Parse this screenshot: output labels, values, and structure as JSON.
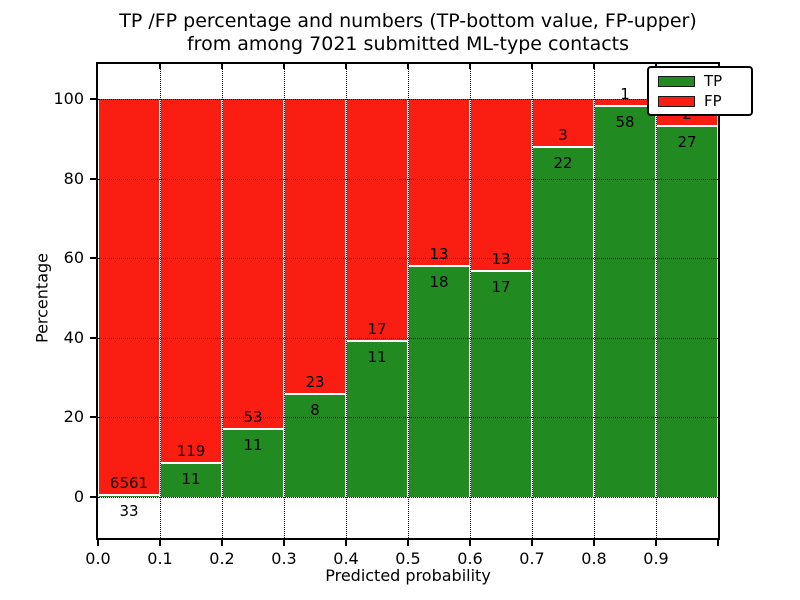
{
  "figure": {
    "title_line1": "TP /FP percentage and numbers (TP-bottom value, FP-upper)",
    "title_line2": "from among 7021 submitted ML-type contacts"
  },
  "axes": {
    "xlabel": "Predicted probability",
    "ylabel": "Percentage",
    "x_tick_labels": [
      "0.0",
      "0.1",
      "0.2",
      "0.3",
      "0.4",
      "0.5",
      "0.6",
      "0.7",
      "0.8",
      "0.9"
    ],
    "y_tick_values": [
      0,
      20,
      40,
      60,
      80,
      100
    ]
  },
  "legend": {
    "items": [
      {
        "label": "TP",
        "color": "#218a21"
      },
      {
        "label": "FP",
        "color": "#fa1d12"
      }
    ]
  },
  "colors": {
    "tp": "#218a21",
    "fp": "#fa1d12",
    "grid": "#000000",
    "spine": "#000000",
    "background": "#ffffff",
    "label_text": "#000000"
  },
  "chart_data": {
    "type": "bar",
    "stacked": true,
    "title": "TP /FP percentage and numbers (TP-bottom value, FP-upper) from among 7021 submitted ML-type contacts",
    "xlabel": "Predicted probability",
    "ylabel": "Percentage",
    "total_contacts": 7021,
    "categories": [
      "0.0-0.1",
      "0.1-0.2",
      "0.2-0.3",
      "0.3-0.4",
      "0.4-0.5",
      "0.5-0.6",
      "0.6-0.7",
      "0.7-0.8",
      "0.8-0.9",
      "0.9-1.0"
    ],
    "x_bin_edges": [
      0.0,
      0.1,
      0.2,
      0.3,
      0.4,
      0.5,
      0.6,
      0.7,
      0.8,
      0.9,
      1.0
    ],
    "series": [
      {
        "name": "TP",
        "counts": [
          33,
          11,
          11,
          8,
          11,
          18,
          17,
          22,
          58,
          27
        ],
        "percent_of_bin": [
          0.5,
          8.5,
          17.2,
          25.8,
          39.3,
          58.1,
          56.7,
          88.0,
          98.3,
          93.1
        ]
      },
      {
        "name": "FP",
        "counts": [
          6561,
          119,
          53,
          23,
          17,
          13,
          13,
          3,
          1,
          2
        ],
        "percent_of_bin": [
          99.5,
          91.5,
          82.8,
          74.2,
          60.7,
          41.9,
          43.3,
          12.0,
          1.7,
          6.9
        ]
      }
    ],
    "xlim": [
      0.0,
      1.0
    ],
    "ylim_shown": [
      0,
      100
    ],
    "y_ticks": [
      0,
      20,
      40,
      60,
      80,
      100
    ],
    "grid": "dotted",
    "legend_position": "upper right"
  }
}
